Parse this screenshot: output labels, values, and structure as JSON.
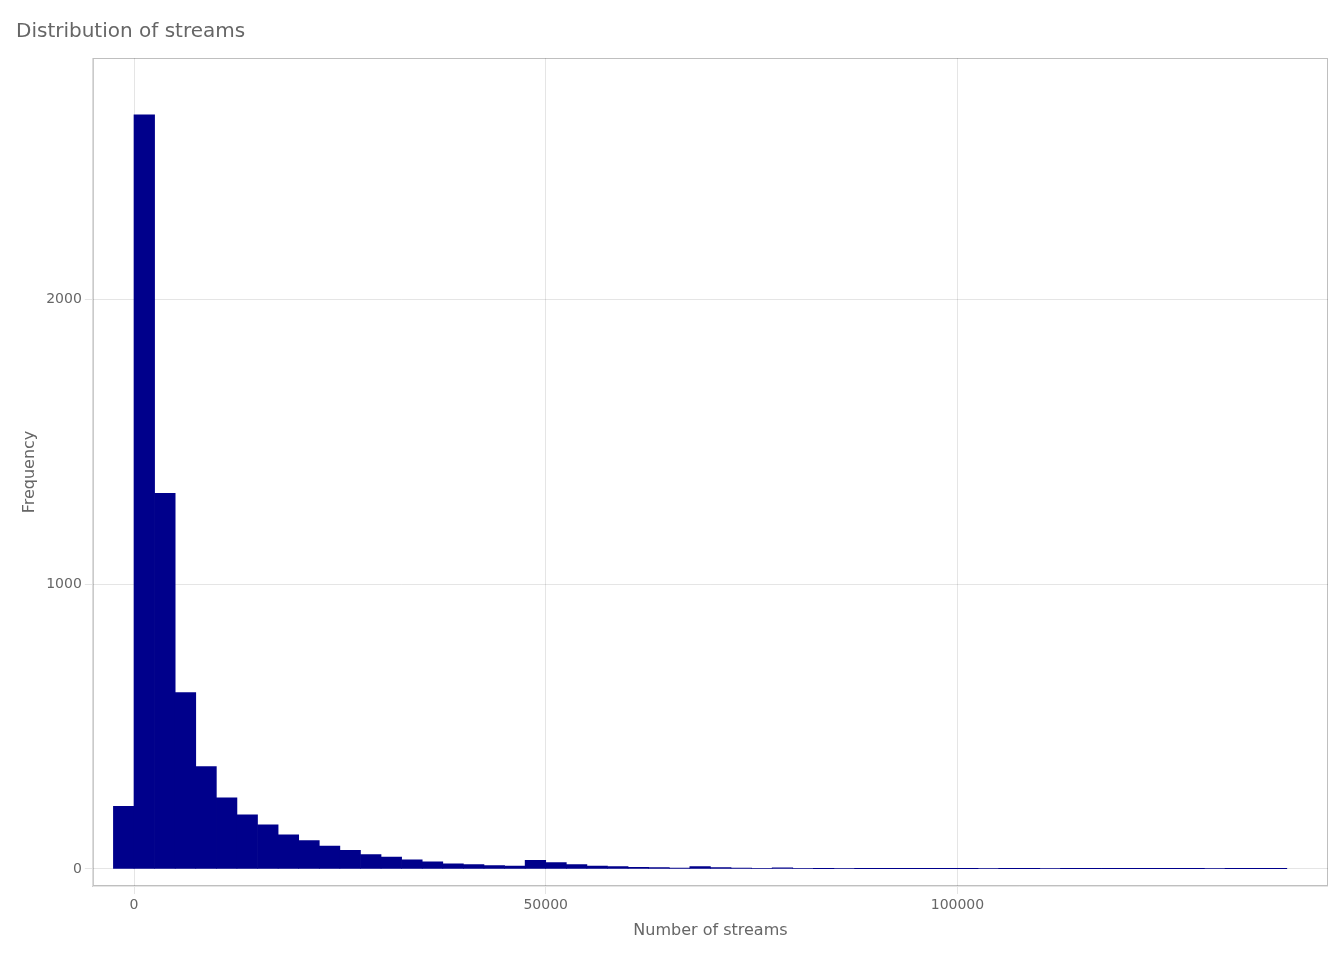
{
  "chart_data": {
    "type": "histogram",
    "title": "Distribution of streams",
    "xlabel": "Number of streams",
    "ylabel": "Frequency",
    "bins": [
      -2500,
      0,
      2500,
      5000,
      7500,
      10000,
      12500,
      15000,
      17500,
      20000,
      22500,
      25000,
      27500,
      30000,
      32500,
      35000,
      37500,
      40000,
      42500,
      45000,
      47500,
      50000,
      52500,
      55000,
      57500,
      60000,
      62500,
      65000,
      67500,
      70000,
      72500,
      75000,
      77500,
      80000,
      82500,
      85000,
      87500,
      90000,
      92500,
      95000,
      97500,
      100000,
      102500,
      105000,
      107500,
      110000,
      112500,
      115000,
      117500,
      120000,
      122500,
      125000,
      127500,
      130000,
      132500,
      135000,
      137500,
      140000
    ],
    "values": [
      220,
      2650,
      1320,
      620,
      360,
      250,
      190,
      155,
      120,
      100,
      80,
      65,
      50,
      42,
      32,
      25,
      18,
      15,
      12,
      10,
      30,
      22,
      15,
      10,
      8,
      6,
      5,
      3,
      8,
      5,
      3,
      2,
      4,
      2,
      1,
      2,
      1,
      1,
      1,
      1,
      1,
      1,
      2,
      1,
      1,
      2,
      1,
      1,
      1,
      1,
      1,
      1,
      1,
      2,
      1,
      1,
      1
    ],
    "color": "#00008B",
    "xlim": [
      -5000,
      145000
    ],
    "ylim": [
      -60,
      2850
    ],
    "xticks": [
      0,
      50000,
      100000
    ],
    "yticks": [
      0,
      1000,
      2000
    ],
    "grid": true
  }
}
